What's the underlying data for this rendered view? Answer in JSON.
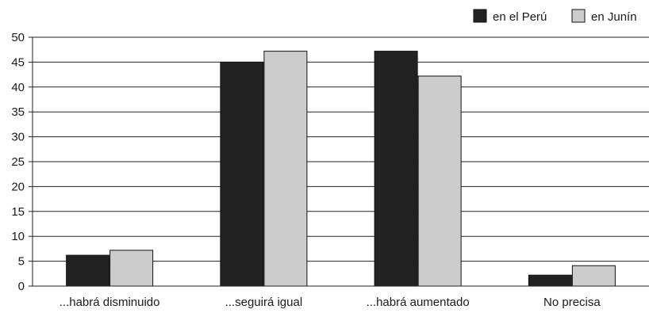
{
  "chart_data": {
    "type": "bar",
    "title": "",
    "xlabel": "",
    "ylabel": "",
    "categories": [
      "...habrá disminuido",
      "...seguirá igual",
      "...habrá aumentado",
      "No precisa"
    ],
    "series": [
      {
        "name": "en el Perú",
        "color": "#222222",
        "values": [
          6.2,
          45,
          47.2,
          2.2
        ]
      },
      {
        "name": "en Junín",
        "color": "#cccccc",
        "values": [
          7.2,
          47.2,
          42.2,
          4.1
        ]
      }
    ],
    "ylim": [
      0,
      50
    ],
    "yticks": [
      "0",
      "5",
      "10",
      "15",
      "20",
      "25",
      "30",
      "35",
      "40",
      "45",
      "50"
    ],
    "grid": true,
    "legend_position": "top-right"
  }
}
